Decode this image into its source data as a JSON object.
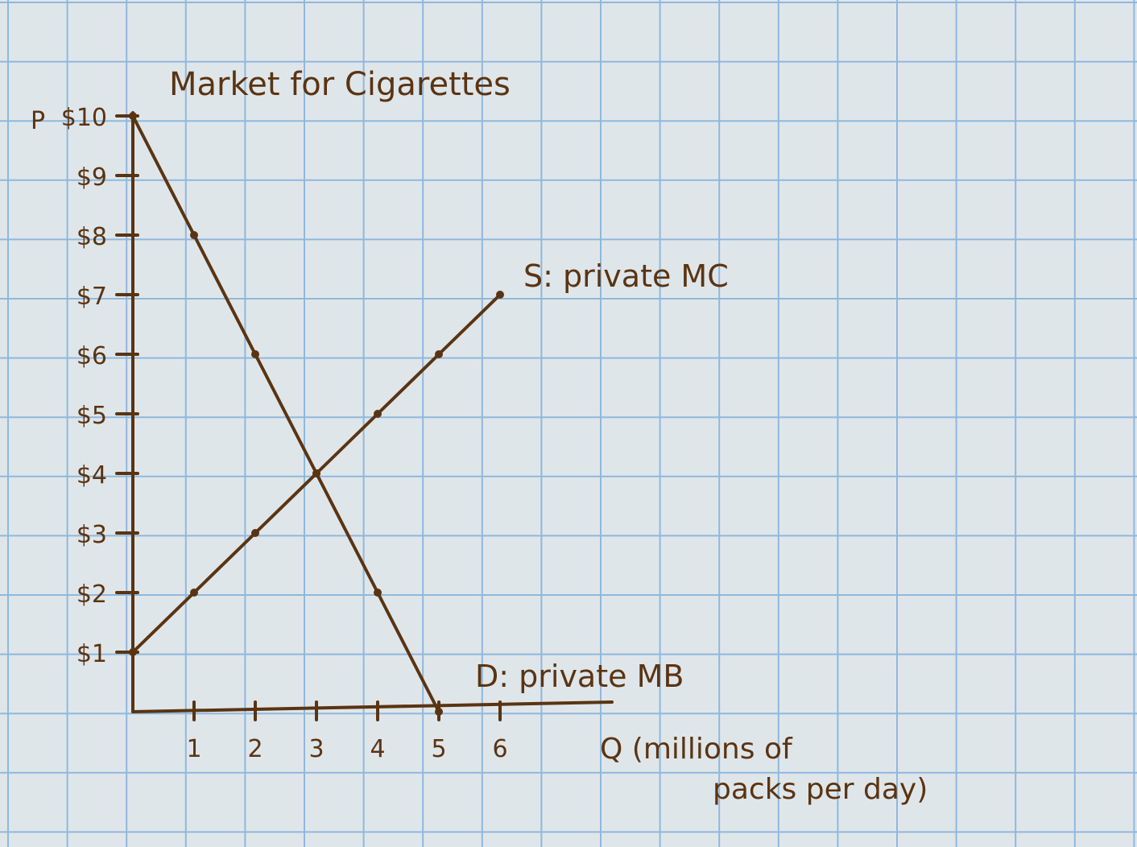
{
  "colors": {
    "paper": "#dfe6ea",
    "grid": "#8fb8dc",
    "ink": "#5a3412"
  },
  "chart_data": {
    "type": "line",
    "title": "Market for Cigarettes",
    "ylabel_prefix": "P",
    "xlabel_line1": "Q (millions of",
    "xlabel_line2": "packs per day)",
    "xlim": [
      0,
      6
    ],
    "ylim": [
      0,
      10
    ],
    "x_ticks": [
      "1",
      "2",
      "3",
      "4",
      "5",
      "6"
    ],
    "y_ticks": [
      "$1",
      "$2",
      "$3",
      "$4",
      "$5",
      "$6",
      "$7",
      "$8",
      "$9",
      "$10"
    ],
    "grid": true,
    "series": [
      {
        "name": "D: private MB",
        "x": [
          0,
          1,
          2,
          3,
          4,
          5
        ],
        "y": [
          10,
          8,
          6,
          4,
          2,
          0
        ]
      },
      {
        "name": "S: private MC",
        "x": [
          0,
          1,
          2,
          3,
          4,
          5,
          6
        ],
        "y": [
          1,
          2,
          3,
          4,
          5,
          6,
          7
        ]
      }
    ]
  }
}
